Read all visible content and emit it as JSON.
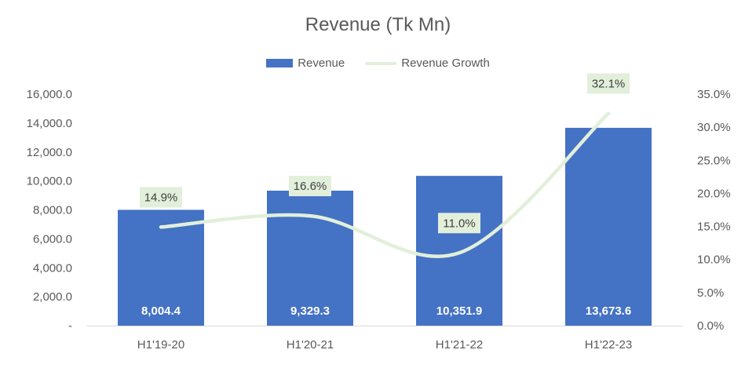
{
  "chart_data": {
    "type": "bar",
    "title": "Revenue (Tk Mn)",
    "categories": [
      "H1'19-20",
      "H1'20-21",
      "H1'21-22",
      "H1'22-23"
    ],
    "series": [
      {
        "name": "Revenue",
        "kind": "bar",
        "axis": "left",
        "color": "#4472C4",
        "values": [
          8004.4,
          9329.3,
          10351.9,
          13673.6
        ],
        "labels": [
          "8,004.4",
          "9,329.3",
          "10,351.9",
          "13,673.6"
        ]
      },
      {
        "name": "Revenue Growth",
        "kind": "line",
        "axis": "right",
        "color": "#E2EFDA",
        "values": [
          14.9,
          16.6,
          11.0,
          32.1
        ],
        "labels": [
          "14.9%",
          "16.6%",
          "11.0%",
          "32.1%"
        ]
      }
    ],
    "y_left": {
      "ylim": [
        0,
        16000
      ],
      "ticks": [
        0,
        2000,
        4000,
        6000,
        8000,
        10000,
        12000,
        14000,
        16000
      ],
      "tick_labels": [
        "-",
        "2,000.0",
        "4,000.0",
        "6,000.0",
        "8,000.0",
        "10,000.0",
        "12,000.0",
        "14,000.0",
        "16,000.0"
      ]
    },
    "y_right": {
      "ylim": [
        0,
        35
      ],
      "ticks": [
        0,
        5,
        10,
        15,
        20,
        25,
        30,
        35
      ],
      "tick_labels": [
        "0.0%",
        "5.0%",
        "10.0%",
        "15.0%",
        "20.0%",
        "25.0%",
        "30.0%",
        "35.0%"
      ]
    },
    "legend": "top-center",
    "grid": false
  }
}
